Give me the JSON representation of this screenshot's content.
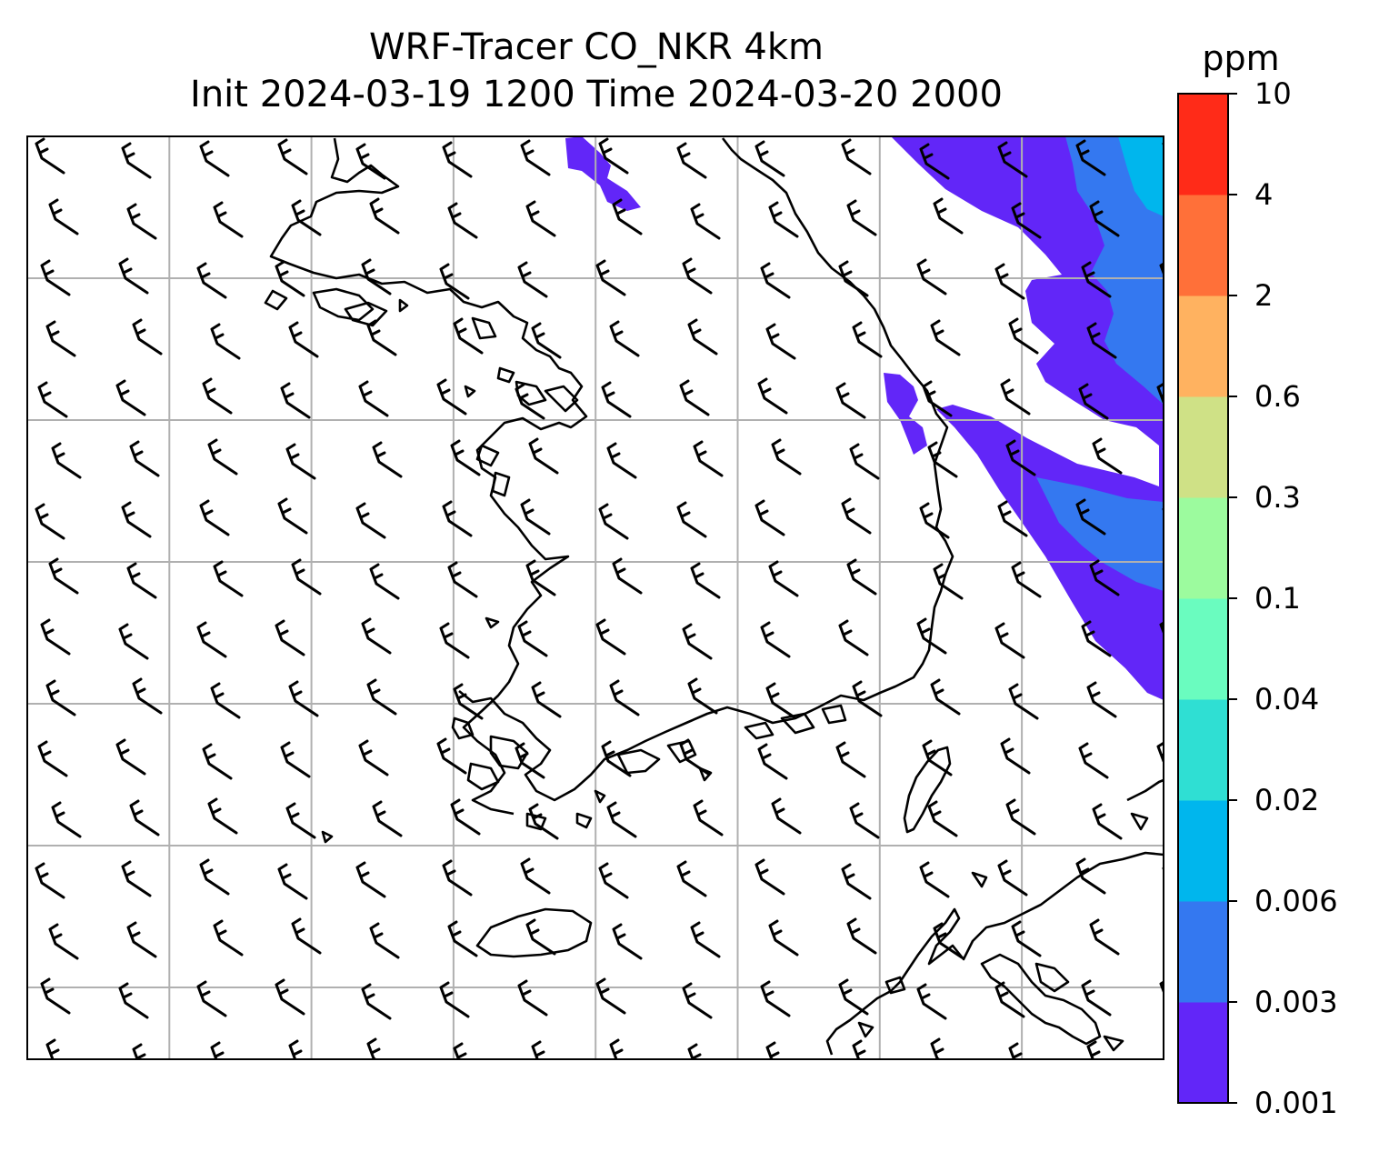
{
  "title": {
    "line1": "WRF-Tracer CO_NKR 4km",
    "line2": "Init 2024-03-19 1200 Time 2024-03-20 2000"
  },
  "colorbar": {
    "unit": "ppm",
    "levels": [
      "0.001",
      "0.003",
      "0.006",
      "0.02",
      "0.04",
      "0.1",
      "0.3",
      "0.6",
      "2",
      "4",
      "10"
    ],
    "colors": [
      "#6226f8",
      "#3478f0",
      "#00b6ed",
      "#2fdfd3",
      "#6afcbf",
      "#9cfb9e",
      "#cfe186",
      "#ffb260",
      "#ff7039",
      "#ff2b18"
    ]
  },
  "map": {
    "plume_color": "#6226f8",
    "plume_inner_colors": [
      "#3478f0",
      "#00b6ed"
    ],
    "coastline_color": "#000000",
    "gridline_color": "#b0b0b0",
    "wind_barb_color": "#000000"
  }
}
